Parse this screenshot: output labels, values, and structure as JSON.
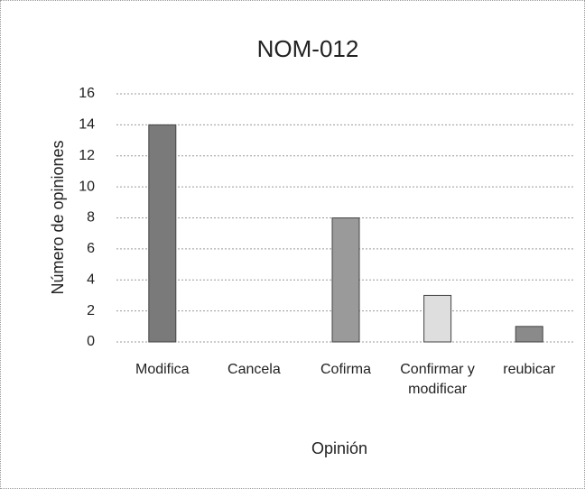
{
  "chart_data": {
    "type": "bar",
    "title": "NOM-012",
    "x_label": "Opinión",
    "y_label": "Número de opiniones",
    "categories": [
      "Modifica",
      "Cancela",
      "Cofirma",
      "Confirmar y modificar",
      "reubicar"
    ],
    "values": [
      14,
      0,
      8,
      3,
      1
    ],
    "colors": [
      "#7a7a7a",
      "#8c8c8c",
      "#9a9a9a",
      "#dedede",
      "#8a8a8a"
    ],
    "ylim": [
      0,
      16
    ],
    "yticks": [
      0,
      2,
      4,
      6,
      8,
      10,
      12,
      14,
      16
    ],
    "grid": true
  }
}
